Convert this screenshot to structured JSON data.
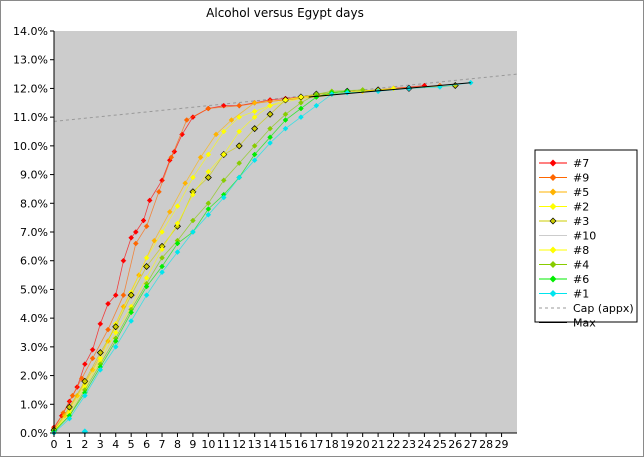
{
  "chart_data": {
    "type": "line",
    "title": "Alcohol versus Egypt days",
    "xlabel": "",
    "ylabel": "",
    "xlim": [
      0,
      30
    ],
    "ylim": [
      0,
      14
    ],
    "x_ticks": [
      "0",
      "1",
      "2",
      "3",
      "4",
      "5",
      "6",
      "7",
      "8",
      "9",
      "10",
      "11",
      "12",
      "13",
      "14",
      "15",
      "16",
      "17",
      "18",
      "19",
      "20",
      "21",
      "22",
      "23",
      "24",
      "25",
      "26",
      "27",
      "28",
      "29"
    ],
    "y_ticks": [
      "0.0%",
      "1.0%",
      "2.0%",
      "3.0%",
      "4.0%",
      "5.0%",
      "6.0%",
      "7.0%",
      "8.0%",
      "9.0%",
      "10.0%",
      "11.0%",
      "12.0%",
      "13.0%",
      "14.0%"
    ],
    "grid": false,
    "legend_position": "right",
    "plot_background": "#cccccc",
    "series": [
      {
        "name": "#7",
        "color": "#ff0000",
        "marker": "diamond",
        "points": [
          [
            0,
            0.2
          ],
          [
            0.5,
            0.6
          ],
          [
            1,
            1.1
          ],
          [
            1.5,
            1.6
          ],
          [
            2,
            2.4
          ],
          [
            2.5,
            2.9
          ],
          [
            3,
            3.8
          ],
          [
            3.5,
            4.5
          ],
          [
            4,
            4.8
          ],
          [
            4.5,
            6.0
          ],
          [
            5,
            6.8
          ],
          [
            5.3,
            7.0
          ],
          [
            5.8,
            7.4
          ],
          [
            6.2,
            8.1
          ],
          [
            7,
            8.8
          ],
          [
            7.5,
            9.5
          ],
          [
            7.8,
            9.8
          ],
          [
            8.3,
            10.4
          ],
          [
            9,
            11.0
          ],
          [
            10,
            11.3
          ],
          [
            11,
            11.4
          ],
          [
            12,
            11.4
          ],
          [
            13,
            11.5
          ],
          [
            14,
            11.6
          ],
          [
            15,
            11.65
          ],
          [
            16,
            11.7
          ],
          [
            17,
            11.75
          ],
          [
            18,
            11.8
          ],
          [
            20,
            11.9
          ],
          [
            22,
            12.0
          ],
          [
            24,
            12.1
          ]
        ]
      },
      {
        "name": "#9",
        "color": "#ff6600",
        "marker": "diamond",
        "points": [
          [
            0,
            0.15
          ],
          [
            0.6,
            0.7
          ],
          [
            1.2,
            1.3
          ],
          [
            1.8,
            1.9
          ],
          [
            2.5,
            2.6
          ],
          [
            3.5,
            3.6
          ],
          [
            4.5,
            4.8
          ],
          [
            5.3,
            6.6
          ],
          [
            6,
            7.2
          ],
          [
            6.8,
            8.4
          ],
          [
            7.6,
            9.6
          ],
          [
            8.6,
            10.9
          ],
          [
            10,
            11.3
          ],
          [
            12,
            11.4
          ],
          [
            14,
            11.55
          ],
          [
            16,
            11.65
          ],
          [
            18,
            11.8
          ],
          [
            20,
            11.9
          ],
          [
            22,
            12.0
          ],
          [
            25,
            12.1
          ]
        ]
      },
      {
        "name": "#5",
        "color": "#ffb300",
        "marker": "diamond",
        "points": [
          [
            0,
            0.1
          ],
          [
            0.7,
            0.6
          ],
          [
            1.5,
            1.3
          ],
          [
            2.5,
            2.2
          ],
          [
            3.5,
            3.2
          ],
          [
            4.5,
            4.4
          ],
          [
            5.5,
            5.5
          ],
          [
            6.5,
            6.7
          ],
          [
            7.5,
            7.7
          ],
          [
            8.5,
            8.7
          ],
          [
            9.5,
            9.6
          ],
          [
            10.5,
            10.4
          ],
          [
            11.5,
            10.9
          ],
          [
            13,
            11.5
          ],
          [
            15,
            11.6
          ],
          [
            17,
            11.7
          ],
          [
            19,
            11.85
          ],
          [
            21,
            11.95
          ],
          [
            23,
            12.0
          ]
        ]
      },
      {
        "name": "#2",
        "color": "#ffff00",
        "marker": "diamond",
        "points": [
          [
            0,
            0.05
          ],
          [
            1,
            0.8
          ],
          [
            2,
            1.7
          ],
          [
            3,
            2.6
          ],
          [
            4,
            3.8
          ],
          [
            5,
            4.9
          ],
          [
            6,
            6.1
          ],
          [
            7,
            7.0
          ],
          [
            8,
            7.9
          ],
          [
            9,
            8.9
          ],
          [
            10,
            9.7
          ],
          [
            11,
            10.5
          ],
          [
            12,
            11.0
          ],
          [
            13,
            11.2
          ],
          [
            14,
            11.4
          ],
          [
            16,
            11.65
          ],
          [
            18,
            11.8
          ],
          [
            20,
            11.9
          ],
          [
            22,
            12.0
          ]
        ]
      },
      {
        "name": "#3",
        "color": "#cccc00",
        "marker": "diamond-outline",
        "points": [
          [
            0,
            0.1
          ],
          [
            1,
            0.9
          ],
          [
            2,
            1.8
          ],
          [
            3,
            2.8
          ],
          [
            4,
            3.7
          ],
          [
            5,
            4.8
          ],
          [
            6,
            5.8
          ],
          [
            7,
            6.5
          ],
          [
            8,
            7.2
          ],
          [
            9,
            8.4
          ],
          [
            10,
            8.9
          ],
          [
            11,
            9.7
          ],
          [
            12,
            10.0
          ],
          [
            13,
            10.6
          ],
          [
            14,
            11.1
          ],
          [
            15,
            11.6
          ],
          [
            16,
            11.7
          ],
          [
            17,
            11.8
          ],
          [
            19,
            11.9
          ],
          [
            21,
            11.95
          ],
          [
            23,
            12.0
          ],
          [
            26,
            12.1
          ]
        ]
      },
      {
        "name": "#10",
        "color": "#cccccc",
        "marker": "none",
        "points": []
      },
      {
        "name": "#8",
        "color": "#ffff00",
        "marker": "diamond",
        "points": [
          [
            0,
            0.05
          ],
          [
            1,
            0.7
          ],
          [
            2,
            1.6
          ],
          [
            3,
            2.5
          ],
          [
            4,
            3.5
          ],
          [
            5,
            4.4
          ],
          [
            6,
            5.4
          ],
          [
            7,
            6.4
          ],
          [
            8,
            7.3
          ],
          [
            9,
            8.3
          ],
          [
            10,
            9.1
          ],
          [
            11,
            9.7
          ],
          [
            12,
            10.5
          ],
          [
            13,
            11.0
          ],
          [
            14,
            11.4
          ],
          [
            15,
            11.6
          ],
          [
            16,
            11.7
          ],
          [
            18,
            11.8
          ],
          [
            20,
            11.9
          ]
        ]
      },
      {
        "name": "#4",
        "color": "#88cc00",
        "marker": "diamond",
        "points": [
          [
            0,
            0.05
          ],
          [
            1,
            0.6
          ],
          [
            2,
            1.5
          ],
          [
            3,
            2.4
          ],
          [
            4,
            3.3
          ],
          [
            5,
            4.3
          ],
          [
            6,
            5.2
          ],
          [
            7,
            6.1
          ],
          [
            8,
            6.7
          ],
          [
            9,
            7.4
          ],
          [
            10,
            8.0
          ],
          [
            11,
            8.8
          ],
          [
            12,
            9.4
          ],
          [
            13,
            10.0
          ],
          [
            14,
            10.6
          ],
          [
            15,
            11.1
          ],
          [
            16,
            11.5
          ],
          [
            17,
            11.8
          ],
          [
            18,
            11.9
          ],
          [
            20,
            11.95
          ]
        ]
      },
      {
        "name": "#6",
        "color": "#00ee00",
        "marker": "diamond",
        "points": [
          [
            0,
            0.05
          ],
          [
            1,
            0.6
          ],
          [
            2,
            1.4
          ],
          [
            3,
            2.3
          ],
          [
            4,
            3.2
          ],
          [
            5,
            4.2
          ],
          [
            6,
            5.1
          ],
          [
            7,
            5.8
          ],
          [
            8,
            6.6
          ],
          [
            9,
            7.0
          ],
          [
            10,
            7.8
          ],
          [
            11,
            8.3
          ],
          [
            12,
            8.9
          ],
          [
            13,
            9.7
          ],
          [
            14,
            10.3
          ],
          [
            15,
            10.9
          ],
          [
            16,
            11.3
          ],
          [
            17,
            11.7
          ],
          [
            18,
            11.85
          ],
          [
            19,
            11.9
          ]
        ]
      },
      {
        "name": "#1",
        "color": "#00e5ee",
        "marker": "diamond",
        "points": [
          [
            0,
            0.0
          ],
          [
            1,
            0.5
          ],
          [
            2,
            1.3
          ],
          [
            3,
            2.2
          ],
          [
            4,
            3.0
          ],
          [
            5,
            3.9
          ],
          [
            6,
            4.8
          ],
          [
            7,
            5.6
          ],
          [
            8,
            6.3
          ],
          [
            9,
            7.0
          ],
          [
            10,
            7.6
          ],
          [
            11,
            8.2
          ],
          [
            12,
            8.9
          ],
          [
            13,
            9.5
          ],
          [
            14,
            10.1
          ],
          [
            15,
            10.6
          ],
          [
            16,
            11.0
          ],
          [
            17,
            11.4
          ],
          [
            18,
            11.8
          ],
          [
            19,
            11.85
          ],
          [
            21,
            11.9
          ],
          [
            23,
            12.0
          ],
          [
            25,
            12.05
          ],
          [
            27,
            12.2
          ]
        ]
      },
      {
        "name": "Cap (appx)",
        "color": "#999999",
        "style": "dashed",
        "marker": "none",
        "points": [
          [
            0,
            10.85
          ],
          [
            30,
            12.5
          ]
        ]
      },
      {
        "name": "Max",
        "color": "#000000",
        "style": "solid",
        "marker": "none",
        "points": [
          [
            16.5,
            11.7
          ],
          [
            27,
            12.2
          ]
        ]
      }
    ],
    "extra_markers": [
      {
        "color": "#00e5ee",
        "points": [
          [
            2,
            0.05
          ]
        ]
      }
    ]
  }
}
